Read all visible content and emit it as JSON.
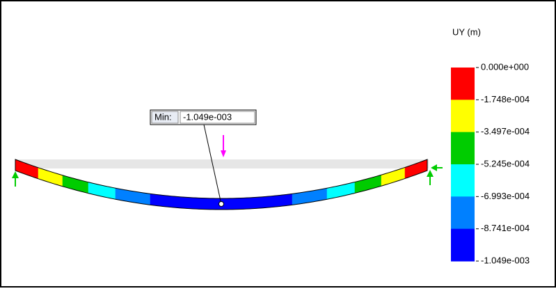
{
  "legend": {
    "title": "UY (m)",
    "labels": [
      "0.000e+000",
      "-1.748e-004",
      "-3.497e-004",
      "-5.245e-004",
      "-6.993e-004",
      "-8.741e-004",
      "-1.049e-003"
    ],
    "colors": [
      "#ff0000",
      "#ffff00",
      "#00cc00",
      "#00ffff",
      "#0080ff",
      "#0000ff"
    ]
  },
  "callout": {
    "label": "Min:",
    "value": "-1.049e-003"
  }
}
